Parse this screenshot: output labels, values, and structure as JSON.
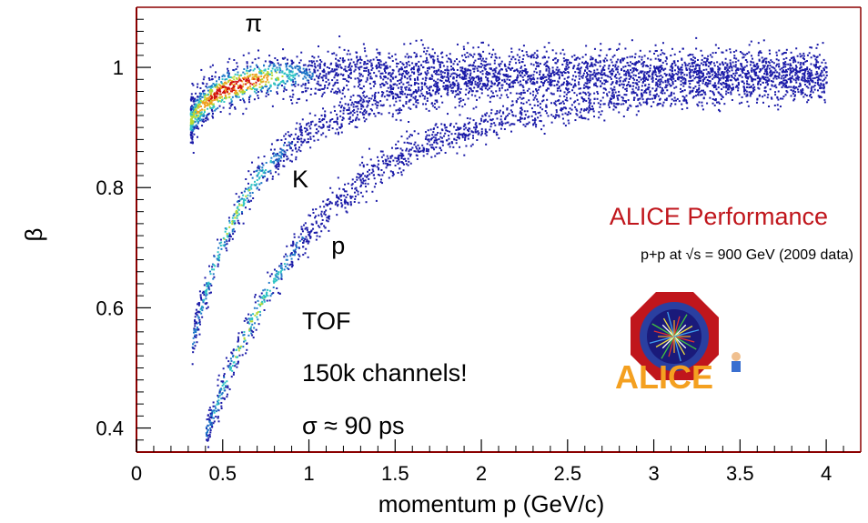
{
  "chart_data": {
    "type": "scatter",
    "xlabel": "momentum p (GeV/c)",
    "ylabel": "β",
    "xlim": [
      0,
      4.2
    ],
    "ylim": [
      0.36,
      1.1
    ],
    "x_ticks": [
      "0",
      "0.5",
      "1",
      "1.5",
      "2",
      "2.5",
      "3",
      "3.5",
      "4"
    ],
    "y_ticks": [
      "0.4",
      "0.6",
      "0.8",
      "1"
    ],
    "x_tick_values": [
      0,
      0.5,
      1,
      1.5,
      2,
      2.5,
      3,
      3.5,
      4
    ],
    "y_tick_values": [
      0.4,
      0.6,
      0.8,
      1.0
    ],
    "bands": [
      {
        "label": "π",
        "mass": 0.1396,
        "p_min": 0.31,
        "p_max": 4.0,
        "label_x": 0.68,
        "label_y": 1.06
      },
      {
        "label": "K",
        "mass": 0.4937,
        "p_min": 0.32,
        "p_max": 4.0,
        "label_x": 0.95,
        "label_y": 0.8
      },
      {
        "label": "p",
        "mass": 0.9383,
        "p_min": 0.4,
        "p_max": 4.0,
        "label_x": 1.17,
        "label_y": 0.69
      }
    ],
    "colorscale": [
      "#1b1ba8",
      "#1f78c8",
      "#2ec4c4",
      "#b6d934",
      "#f0a020",
      "#d01010"
    ]
  },
  "annotations": {
    "detector": "TOF",
    "channels": "150k channels!",
    "resolution": "σ ≈ 90 ps"
  },
  "performance": {
    "title": "ALICE Performance",
    "subtitle_prefix": "p+p at ",
    "subtitle_sqrt": "√s",
    "subtitle_suffix": " = 900 GeV (2009 data)",
    "title_color": "#c0161c"
  },
  "logo": {
    "text": "ALICE",
    "octagon_color": "#c0161c",
    "ring_color": "#2a3fa0",
    "text_color": "#f4a020"
  },
  "frame_color": "#8b0000"
}
